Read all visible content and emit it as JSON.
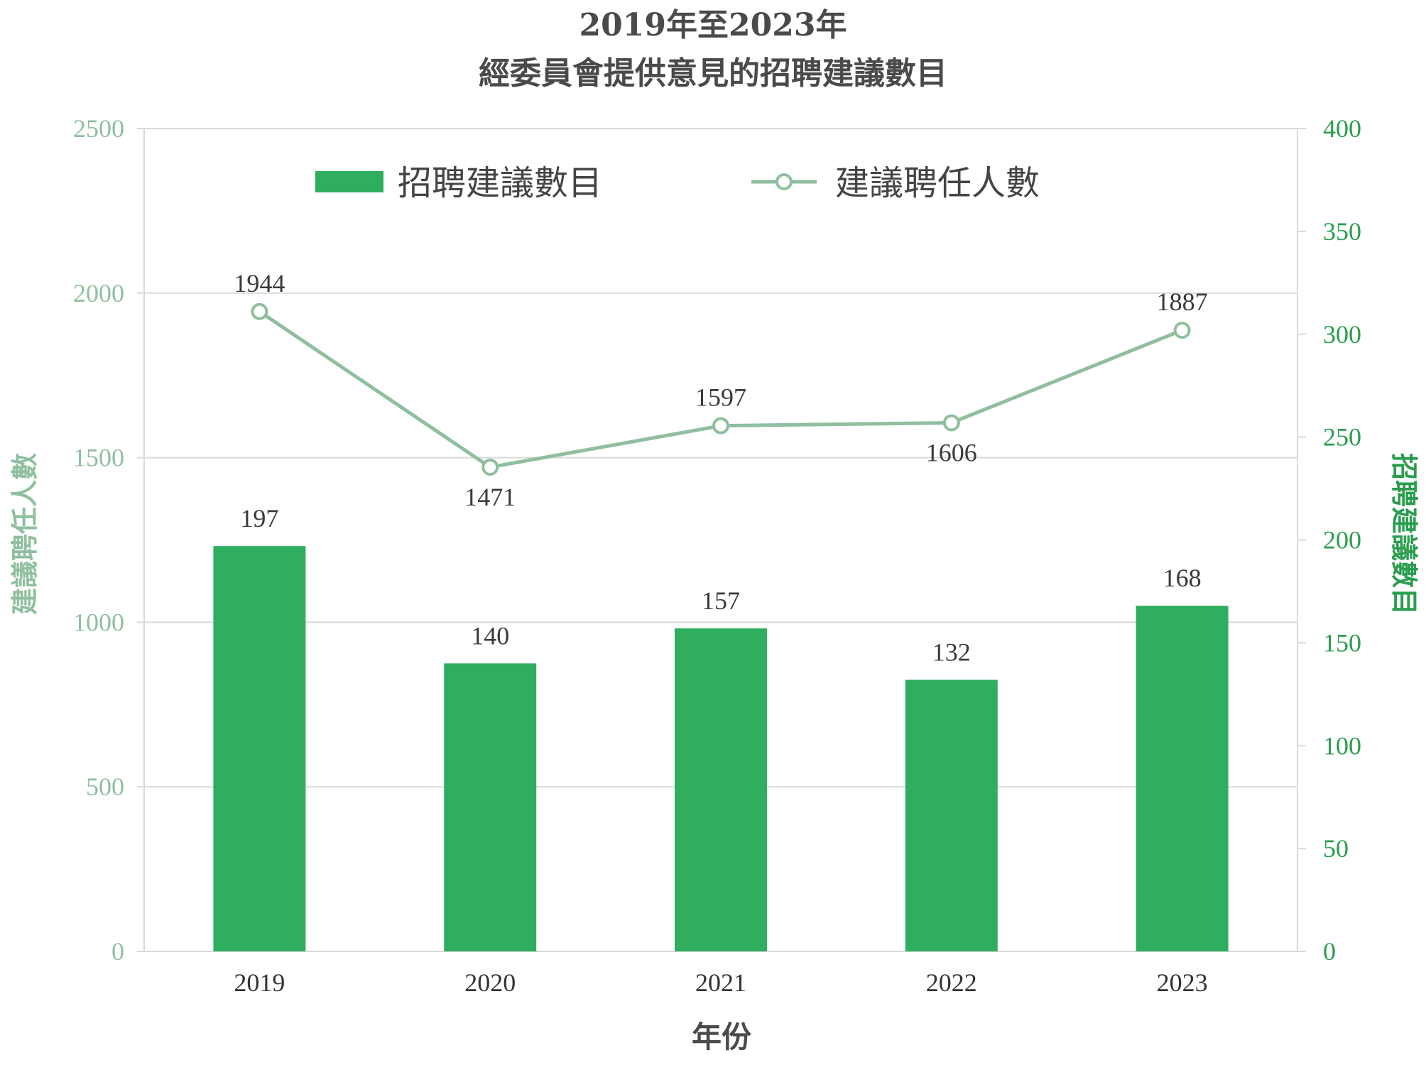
{
  "chart_data": {
    "type": "bar",
    "title_line1": "2019年至2023年",
    "title_line2": "經委員會提供意見的招聘建議數目",
    "xlabel": "年份",
    "ylabel_left": "建議聘任人數",
    "ylabel_right": "招聘建議數目",
    "categories": [
      "2019",
      "2020",
      "2021",
      "2022",
      "2023"
    ],
    "ylim_left": [
      0,
      2500
    ],
    "ylim_right": [
      0,
      400
    ],
    "yticks_left": [
      "0",
      "500",
      "1000",
      "1500",
      "2000",
      "2500"
    ],
    "yticks_right": [
      "0",
      "50",
      "100",
      "150",
      "200",
      "250",
      "300",
      "350",
      "400"
    ],
    "grid": true,
    "legend_position": "top",
    "series": [
      {
        "name": "招聘建議數目",
        "type": "bar",
        "axis": "right",
        "color": "#2eae5e",
        "values": [
          197,
          140,
          157,
          132,
          168
        ],
        "labels": [
          "197",
          "140",
          "157",
          "132",
          "168"
        ]
      },
      {
        "name": "建議聘任人數",
        "type": "line",
        "axis": "left",
        "color": "#8fbf9f",
        "values": [
          1944,
          1471,
          1597,
          1606,
          1887
        ],
        "labels": [
          "1944",
          "1471",
          "1597",
          "1606",
          "1887"
        ]
      }
    ]
  }
}
